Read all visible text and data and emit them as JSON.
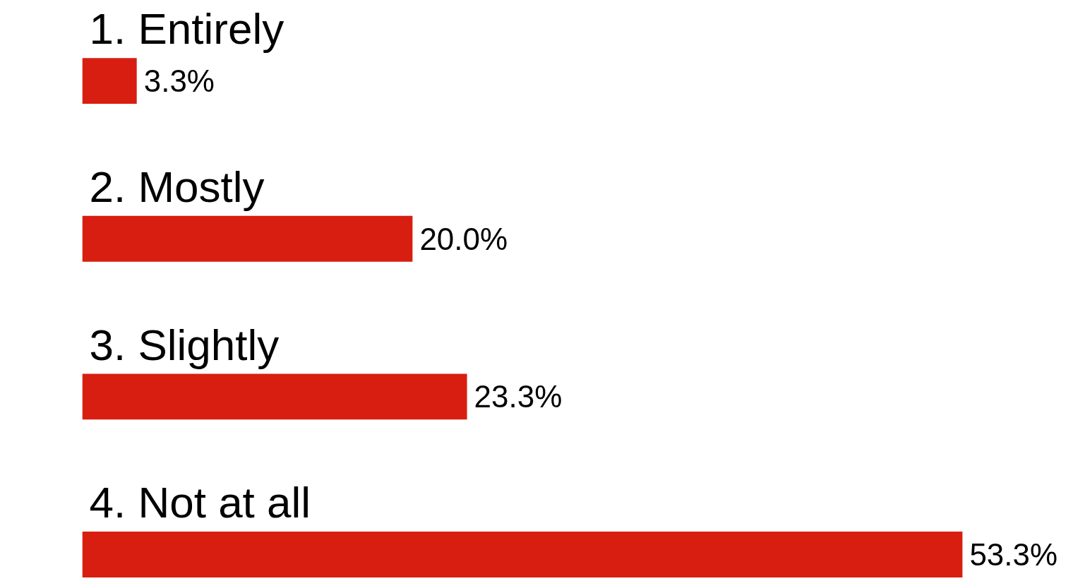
{
  "chart_data": {
    "type": "bar",
    "orientation": "horizontal",
    "categories": [
      "1. Entirely",
      "2. Mostly",
      "3. Slightly",
      "4. Not at all"
    ],
    "values": [
      3.3,
      20.0,
      23.3,
      53.3
    ],
    "value_labels": [
      "3.3%",
      "20.0%",
      "23.3%",
      "53.3%"
    ],
    "color": "#d81e10",
    "tick_labels": false
  }
}
